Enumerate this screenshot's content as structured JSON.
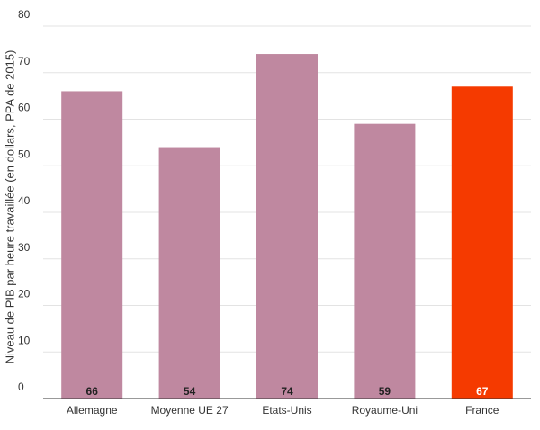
{
  "chart_data": {
    "type": "bar",
    "y_label": "Niveau de PIB par heure travaillée (en dollars, PPA de 2015)",
    "categories": [
      "Allemagne",
      "Moyenne UE 27",
      "Etats-Unis",
      "Royaume-Uni",
      "France"
    ],
    "values": [
      66,
      54,
      74,
      59,
      67
    ],
    "colors": [
      "#bf88a0",
      "#bf88a0",
      "#bf88a0",
      "#bf88a0",
      "#f53a00"
    ],
    "ylim": [
      0,
      80
    ],
    "yticks": [
      0,
      10,
      20,
      30,
      40,
      50,
      60,
      70,
      80
    ],
    "grid": true
  }
}
